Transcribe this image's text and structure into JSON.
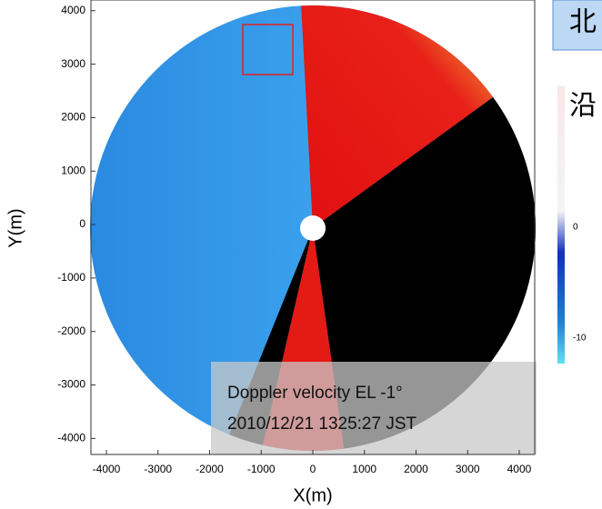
{
  "chart_data": {
    "type": "radar",
    "xlabel": "X(m)",
    "ylabel": "Y(m)",
    "xlim": [
      -4300,
      4300
    ],
    "ylim": [
      -4300,
      4200
    ],
    "xticks": [
      -4000,
      -3000,
      -2000,
      -1000,
      0,
      1000,
      2000,
      3000,
      4000
    ],
    "yticks": [
      -4000,
      -3000,
      -2000,
      -1000,
      0,
      1000,
      2000,
      3000,
      4000
    ],
    "annotations": [
      "Doppler velocity EL -1°",
      "2010/12/21 1325:27 JST"
    ],
    "colorbar_ticks": [
      0,
      -10
    ],
    "side_texts": [
      "北",
      "沿"
    ]
  }
}
